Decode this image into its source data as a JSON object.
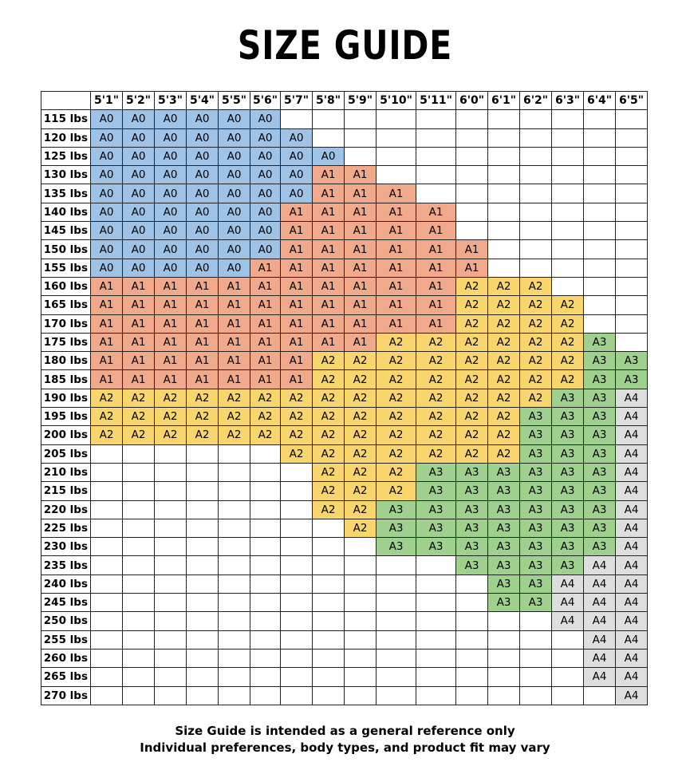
{
  "title": "SIZE GUIDE",
  "heights": [
    "5'1\"",
    "5'2\"",
    "5'3\"",
    "5'4\"",
    "5'5\"",
    "5'6\"",
    "5'7\"",
    "5'8\"",
    "5'9\"",
    "5'10\"",
    "5'11\"",
    "6'0\"",
    "6'1\"",
    "6'2\"",
    "6'3\"",
    "6'4\"",
    "6'5\""
  ],
  "weights": [
    "115 lbs",
    "120 lbs",
    "125 lbs",
    "130 lbs",
    "135 lbs",
    "140 lbs",
    "145 lbs",
    "150 lbs",
    "155 lbs",
    "160 lbs",
    "165 lbs",
    "170 lbs",
    "175 lbs",
    "180 lbs",
    "185 lbs",
    "190 lbs",
    "195 lbs",
    "200 lbs",
    "205 lbs",
    "210 lbs",
    "215 lbs",
    "220 lbs",
    "225 lbs",
    "230 lbs",
    "235 lbs",
    "240 lbs",
    "245 lbs",
    "250 lbs",
    "255 lbs",
    "260 lbs",
    "265 lbs",
    "270 lbs"
  ],
  "size_colors": {
    "A0": "#9ec3e6",
    "A1": "#f0a98a",
    "A2": "#f9d56e",
    "A3": "#9fd08e",
    "A4": "#dedede"
  },
  "sizes": [
    [
      "A0",
      "A0",
      "A0",
      "A0",
      "A0",
      "A0",
      "",
      "",
      "",
      "",
      "",
      "",
      "",
      "",
      "",
      "",
      ""
    ],
    [
      "A0",
      "A0",
      "A0",
      "A0",
      "A0",
      "A0",
      "A0",
      "",
      "",
      "",
      "",
      "",
      "",
      "",
      "",
      "",
      ""
    ],
    [
      "A0",
      "A0",
      "A0",
      "A0",
      "A0",
      "A0",
      "A0",
      "A0",
      "",
      "",
      "",
      "",
      "",
      "",
      "",
      "",
      ""
    ],
    [
      "A0",
      "A0",
      "A0",
      "A0",
      "A0",
      "A0",
      "A0",
      "A1",
      "A1",
      "",
      "",
      "",
      "",
      "",
      "",
      "",
      ""
    ],
    [
      "A0",
      "A0",
      "A0",
      "A0",
      "A0",
      "A0",
      "A0",
      "A1",
      "A1",
      "A1",
      "",
      "",
      "",
      "",
      "",
      "",
      ""
    ],
    [
      "A0",
      "A0",
      "A0",
      "A0",
      "A0",
      "A0",
      "A1",
      "A1",
      "A1",
      "A1",
      "A1",
      "",
      "",
      "",
      "",
      "",
      ""
    ],
    [
      "A0",
      "A0",
      "A0",
      "A0",
      "A0",
      "A0",
      "A1",
      "A1",
      "A1",
      "A1",
      "A1",
      "",
      "",
      "",
      "",
      "",
      ""
    ],
    [
      "A0",
      "A0",
      "A0",
      "A0",
      "A0",
      "A0",
      "A1",
      "A1",
      "A1",
      "A1",
      "A1",
      "A1",
      "",
      "",
      "",
      "",
      ""
    ],
    [
      "A0",
      "A0",
      "A0",
      "A0",
      "A0",
      "A1",
      "A1",
      "A1",
      "A1",
      "A1",
      "A1",
      "A1",
      "",
      "",
      "",
      "",
      ""
    ],
    [
      "A1",
      "A1",
      "A1",
      "A1",
      "A1",
      "A1",
      "A1",
      "A1",
      "A1",
      "A1",
      "A1",
      "A2",
      "A2",
      "A2",
      "",
      "",
      ""
    ],
    [
      "A1",
      "A1",
      "A1",
      "A1",
      "A1",
      "A1",
      "A1",
      "A1",
      "A1",
      "A1",
      "A1",
      "A2",
      "A2",
      "A2",
      "A2",
      "",
      ""
    ],
    [
      "A1",
      "A1",
      "A1",
      "A1",
      "A1",
      "A1",
      "A1",
      "A1",
      "A1",
      "A1",
      "A1",
      "A2",
      "A2",
      "A2",
      "A2",
      "",
      ""
    ],
    [
      "A1",
      "A1",
      "A1",
      "A1",
      "A1",
      "A1",
      "A1",
      "A1",
      "A1",
      "A2",
      "A2",
      "A2",
      "A2",
      "A2",
      "A2",
      "A3",
      ""
    ],
    [
      "A1",
      "A1",
      "A1",
      "A1",
      "A1",
      "A1",
      "A1",
      "A2",
      "A2",
      "A2",
      "A2",
      "A2",
      "A2",
      "A2",
      "A2",
      "A3",
      "A3"
    ],
    [
      "A1",
      "A1",
      "A1",
      "A1",
      "A1",
      "A1",
      "A1",
      "A2",
      "A2",
      "A2",
      "A2",
      "A2",
      "A2",
      "A2",
      "A2",
      "A3",
      "A3"
    ],
    [
      "A2",
      "A2",
      "A2",
      "A2",
      "A2",
      "A2",
      "A2",
      "A2",
      "A2",
      "A2",
      "A2",
      "A2",
      "A2",
      "A2",
      "A3",
      "A3",
      "A4"
    ],
    [
      "A2",
      "A2",
      "A2",
      "A2",
      "A2",
      "A2",
      "A2",
      "A2",
      "A2",
      "A2",
      "A2",
      "A2",
      "A2",
      "A3",
      "A3",
      "A3",
      "A4"
    ],
    [
      "A2",
      "A2",
      "A2",
      "A2",
      "A2",
      "A2",
      "A2",
      "A2",
      "A2",
      "A2",
      "A2",
      "A2",
      "A2",
      "A3",
      "A3",
      "A3",
      "A4"
    ],
    [
      "",
      "",
      "",
      "",
      "",
      "",
      "A2",
      "A2",
      "A2",
      "A2",
      "A2",
      "A2",
      "A2",
      "A3",
      "A3",
      "A3",
      "A4"
    ],
    [
      "",
      "",
      "",
      "",
      "",
      "",
      "",
      "A2",
      "A2",
      "A2",
      "A3",
      "A3",
      "A3",
      "A3",
      "A3",
      "A3",
      "A4"
    ],
    [
      "",
      "",
      "",
      "",
      "",
      "",
      "",
      "A2",
      "A2",
      "A2",
      "A3",
      "A3",
      "A3",
      "A3",
      "A3",
      "A3",
      "A4"
    ],
    [
      "",
      "",
      "",
      "",
      "",
      "",
      "",
      "A2",
      "A2",
      "A3",
      "A3",
      "A3",
      "A3",
      "A3",
      "A3",
      "A3",
      "A4"
    ],
    [
      "",
      "",
      "",
      "",
      "",
      "",
      "",
      "",
      "A2",
      "A3",
      "A3",
      "A3",
      "A3",
      "A3",
      "A3",
      "A3",
      "A4"
    ],
    [
      "",
      "",
      "",
      "",
      "",
      "",
      "",
      "",
      "",
      "A3",
      "A3",
      "A3",
      "A3",
      "A3",
      "A3",
      "A3",
      "A4"
    ],
    [
      "",
      "",
      "",
      "",
      "",
      "",
      "",
      "",
      "",
      "",
      "",
      "A3",
      "A3",
      "A3",
      "A3",
      "A4",
      "A4"
    ],
    [
      "",
      "",
      "",
      "",
      "",
      "",
      "",
      "",
      "",
      "",
      "",
      "",
      "A3",
      "A3",
      "A4",
      "A4",
      "A4"
    ],
    [
      "",
      "",
      "",
      "",
      "",
      "",
      "",
      "",
      "",
      "",
      "",
      "",
      "A3",
      "A3",
      "A4",
      "A4",
      "A4"
    ],
    [
      "",
      "",
      "",
      "",
      "",
      "",
      "",
      "",
      "",
      "",
      "",
      "",
      "",
      "",
      "A4",
      "A4",
      "A4"
    ],
    [
      "",
      "",
      "",
      "",
      "",
      "",
      "",
      "",
      "",
      "",
      "",
      "",
      "",
      "",
      "",
      "A4",
      "A4"
    ],
    [
      "",
      "",
      "",
      "",
      "",
      "",
      "",
      "",
      "",
      "",
      "",
      "",
      "",
      "",
      "",
      "A4",
      "A4"
    ],
    [
      "",
      "",
      "",
      "",
      "",
      "",
      "",
      "",
      "",
      "",
      "",
      "",
      "",
      "",
      "",
      "A4",
      "A4"
    ],
    [
      "",
      "",
      "",
      "",
      "",
      "",
      "",
      "",
      "",
      "",
      "",
      "",
      "",
      "",
      "",
      "",
      "A4"
    ]
  ],
  "footnote": {
    "line1": "Size Guide is intended as a general reference only",
    "line2": "Individual preferences, body types, and product fit may vary"
  }
}
